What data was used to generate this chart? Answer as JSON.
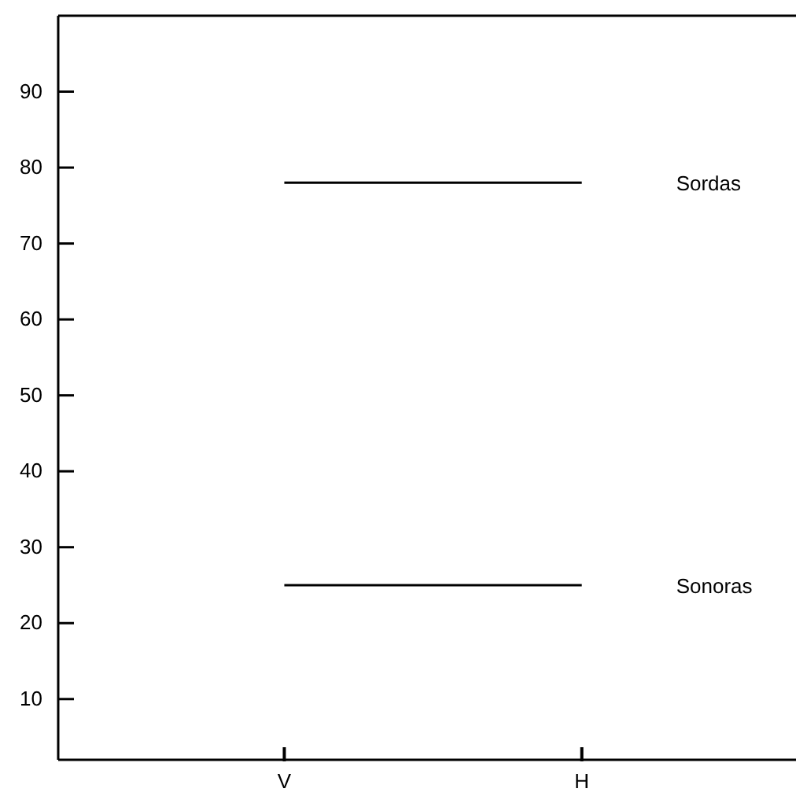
{
  "chart_data": {
    "type": "line",
    "categories": [
      "V",
      "H"
    ],
    "series": [
      {
        "name": "Sordas",
        "color": "#000000",
        "values": [
          78,
          78
        ]
      },
      {
        "name": "Sonoras",
        "color": "#000000",
        "values": [
          25,
          25
        ]
      }
    ],
    "ylim": [
      2,
      100
    ],
    "yticks": [
      10,
      20,
      30,
      40,
      50,
      60,
      70,
      80,
      90
    ],
    "marker": "none",
    "line_style": "solid",
    "grid": false,
    "legend": false
  }
}
